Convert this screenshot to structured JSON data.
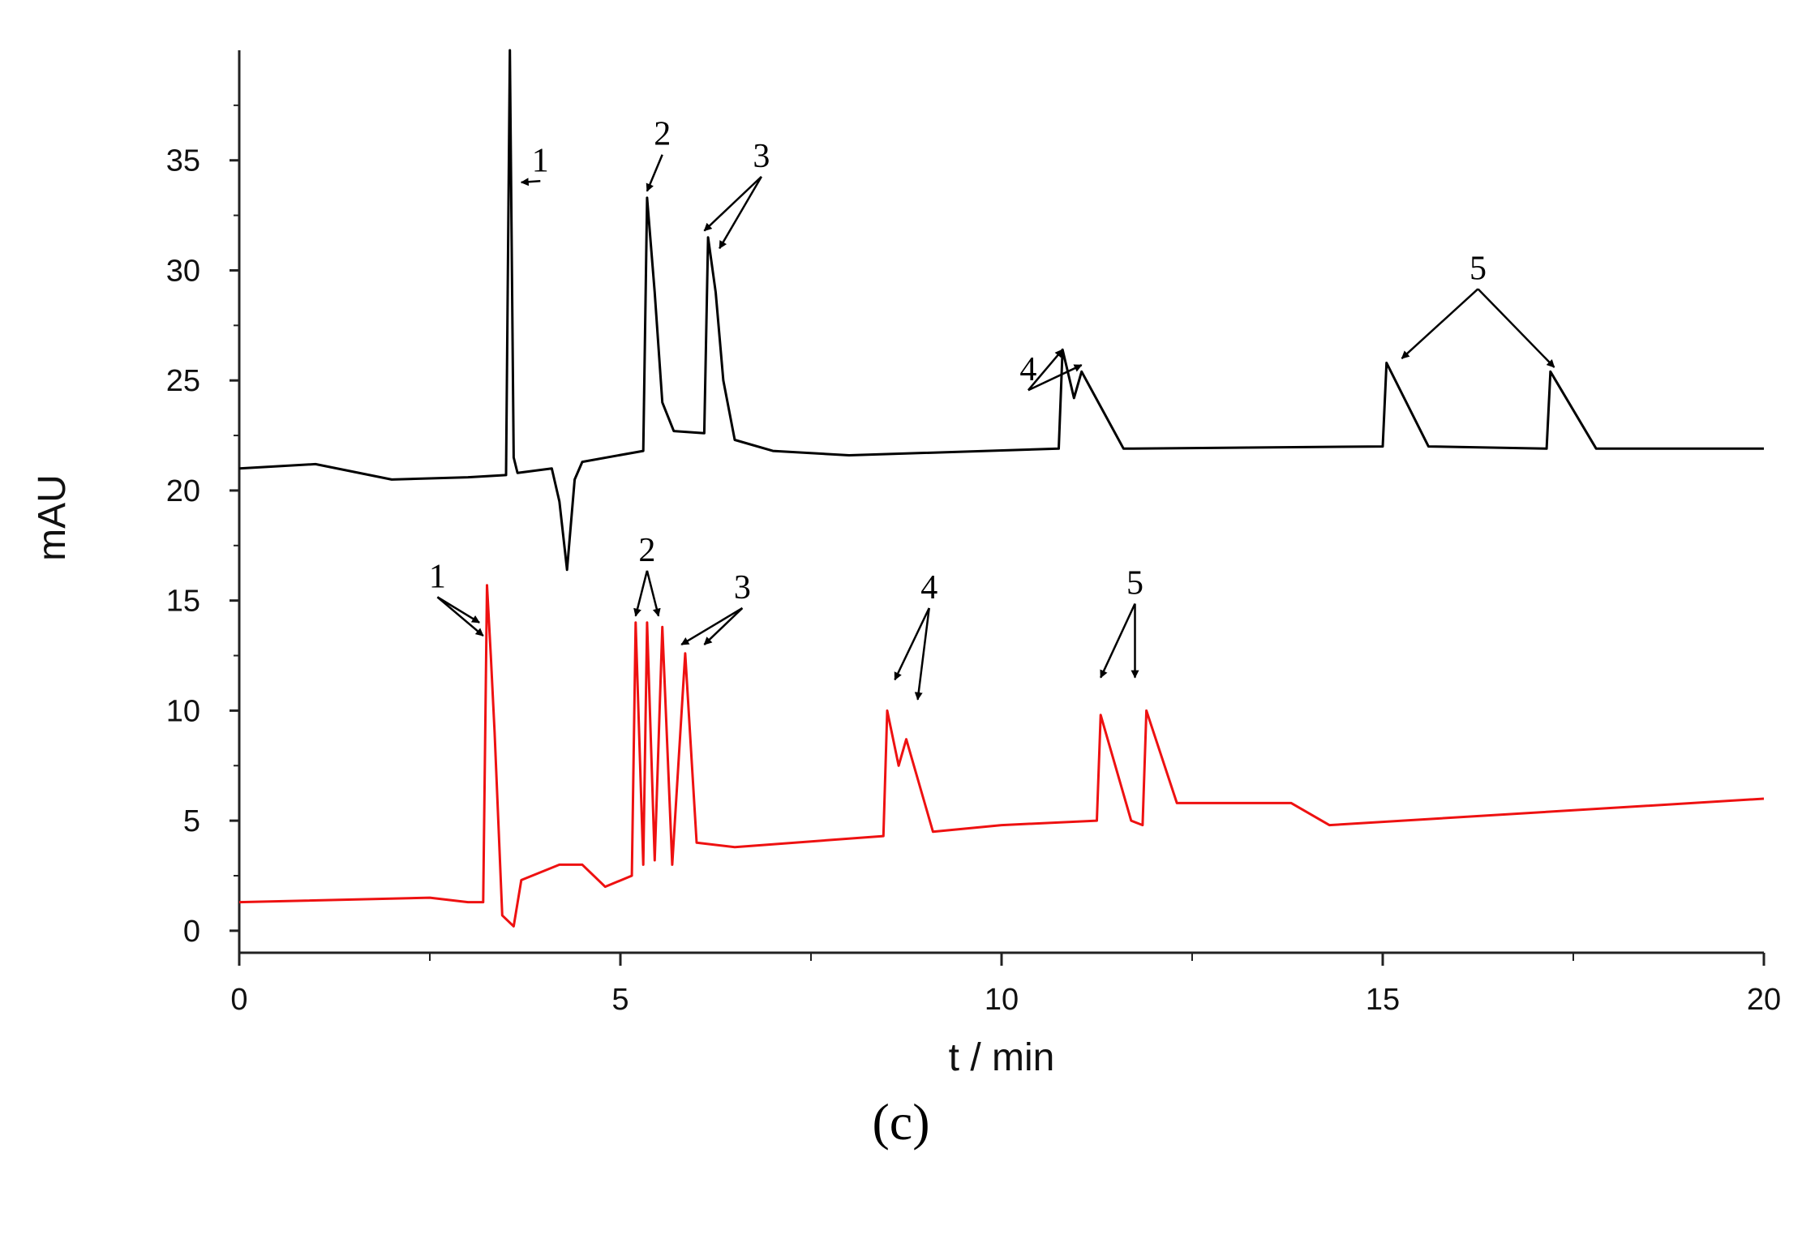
{
  "chart_data": {
    "type": "line",
    "xlabel": "t / min",
    "ylabel": "mAU",
    "xlim": [
      0,
      20
    ],
    "ylim": [
      -1,
      40
    ],
    "xticks": [
      0,
      5,
      10,
      15,
      20
    ],
    "yticks": [
      0,
      5,
      10,
      15,
      20,
      25,
      30,
      35
    ],
    "grid": false,
    "series": [
      {
        "color": "#000000",
        "points": [
          [
            0,
            21.0
          ],
          [
            1.0,
            21.2
          ],
          [
            2.0,
            20.5
          ],
          [
            3.0,
            20.6
          ],
          [
            3.5,
            20.7
          ],
          [
            3.55,
            40
          ],
          [
            3.6,
            21.5
          ],
          [
            3.65,
            20.8
          ],
          [
            4.1,
            21.0
          ],
          [
            4.2,
            19.5
          ],
          [
            4.3,
            16.4
          ],
          [
            4.4,
            20.5
          ],
          [
            4.5,
            21.3
          ],
          [
            5.3,
            21.8
          ],
          [
            5.35,
            33.3
          ],
          [
            5.45,
            29
          ],
          [
            5.55,
            24
          ],
          [
            5.7,
            22.7
          ],
          [
            6.1,
            22.6
          ],
          [
            6.15,
            31.5
          ],
          [
            6.25,
            29
          ],
          [
            6.35,
            25
          ],
          [
            6.5,
            22.3
          ],
          [
            7.0,
            21.8
          ],
          [
            8.0,
            21.6
          ],
          [
            10.75,
            21.9
          ],
          [
            10.8,
            26.4
          ],
          [
            10.95,
            24.2
          ],
          [
            11.05,
            25.4
          ],
          [
            11.6,
            21.9
          ],
          [
            15.0,
            22.0
          ],
          [
            15.05,
            25.8
          ],
          [
            15.6,
            22.0
          ],
          [
            17.15,
            21.9
          ],
          [
            17.2,
            25.4
          ],
          [
            17.8,
            21.9
          ],
          [
            20.0,
            21.9
          ]
        ]
      },
      {
        "color": "#ee1111",
        "points": [
          [
            0,
            1.3
          ],
          [
            2.5,
            1.5
          ],
          [
            3.0,
            1.3
          ],
          [
            3.2,
            1.3
          ],
          [
            3.25,
            15.7
          ],
          [
            3.3,
            12.5
          ],
          [
            3.35,
            9
          ],
          [
            3.45,
            0.7
          ],
          [
            3.6,
            0.2
          ],
          [
            3.7,
            2.3
          ],
          [
            4.2,
            3.0
          ],
          [
            4.5,
            3.0
          ],
          [
            4.8,
            2.0
          ],
          [
            5.15,
            2.5
          ],
          [
            5.2,
            14.0
          ],
          [
            5.3,
            3.0
          ],
          [
            5.35,
            14.0
          ],
          [
            5.45,
            3.2
          ],
          [
            5.55,
            13.8
          ],
          [
            5.68,
            3.0
          ],
          [
            5.85,
            12.6
          ],
          [
            6.0,
            4.0
          ],
          [
            6.5,
            3.8
          ],
          [
            8.45,
            4.3
          ],
          [
            8.5,
            10.0
          ],
          [
            8.65,
            7.5
          ],
          [
            8.75,
            8.7
          ],
          [
            9.1,
            4.5
          ],
          [
            10.0,
            4.8
          ],
          [
            11.25,
            5.0
          ],
          [
            11.3,
            9.8
          ],
          [
            11.7,
            5.0
          ],
          [
            11.85,
            4.8
          ],
          [
            11.9,
            10.0
          ],
          [
            12.3,
            5.8
          ],
          [
            13.8,
            5.8
          ],
          [
            14.3,
            4.8
          ],
          [
            20.0,
            6.0
          ]
        ]
      }
    ],
    "annotations": [
      {
        "text": "1",
        "series": 0
      },
      {
        "text": "2",
        "series": 0
      },
      {
        "text": "3",
        "series": 0
      },
      {
        "text": "4",
        "series": 0
      },
      {
        "text": "5",
        "series": 0
      },
      {
        "text": "1",
        "series": 1
      },
      {
        "text": "2",
        "series": 1
      },
      {
        "text": "3",
        "series": 1
      },
      {
        "text": "4",
        "series": 1
      },
      {
        "text": "5",
        "series": 1
      }
    ]
  },
  "caption": "(c)"
}
